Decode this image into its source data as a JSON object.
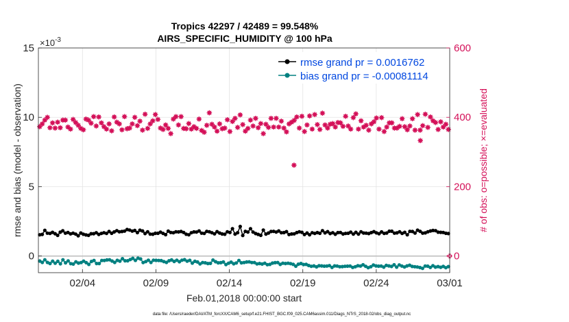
{
  "chart_data": {
    "type": "line",
    "title_line1": "Tropics 42297 / 42489 = 99.548%",
    "title_line2": "AIRS_SPECIFIC_HUMIDITY @ 100 hPa",
    "ylabel": "rmse and bias (model - observation)",
    "ylabel_right": "# of obs: o=possible; ×=evaluated",
    "xlabel": "Feb.01,2018 00:00:00 start",
    "footnote": "data file: /Users/raeder/DAI/ATM_forcXX/CAM6_setup/f.e21.FHIST_BGC.f09_025.CAM6assim.011/Diags_NTrS_2018-02/obs_diag_output.nc",
    "exponent_label": "×10",
    "exponent_power": "-3",
    "ylim": [
      -0.0012,
      0.015
    ],
    "ylim_right": [
      -48,
      600
    ],
    "xlim": [
      0,
      28
    ],
    "yticks": [
      0,
      0.005,
      0.01,
      0.015
    ],
    "ytick_labels": [
      "0",
      "5",
      "10",
      "15"
    ],
    "yticks_right": [
      0,
      200,
      400,
      600
    ],
    "ytick_labels_right": [
      "0",
      "200",
      "400",
      "600"
    ],
    "xticks": [
      3,
      8,
      13,
      18,
      23,
      28
    ],
    "xtick_labels": [
      "02/04",
      "02/09",
      "02/14",
      "02/19",
      "02/24",
      "03/01"
    ],
    "grid": true,
    "legend_position": "top-right",
    "zero_line_value": 0,
    "colors": {
      "rmse": "#000000",
      "bias": "#008080",
      "obs": "#d41159",
      "legend_text": "#0047e0",
      "zero_line": "#bbbbbb",
      "grid": "#e3e3e3"
    },
    "series": [
      {
        "name": "rmse grand pr = 0.0016762",
        "axis": "left",
        "color": "#000000",
        "values": [
          0.00153,
          0.00156,
          0.00185,
          0.00165,
          0.00163,
          0.00171,
          0.00161,
          0.00149,
          0.00172,
          0.00182,
          0.00165,
          0.0017,
          0.0016,
          0.00165,
          0.00158,
          0.00146,
          0.00166,
          0.00157,
          0.00152,
          0.00149,
          0.00161,
          0.00161,
          0.00168,
          0.00156,
          0.00163,
          0.00168,
          0.00163,
          0.00177,
          0.00164,
          0.00174,
          0.00183,
          0.00175,
          0.00177,
          0.0018,
          0.00191,
          0.00187,
          0.0018,
          0.00184,
          0.00169,
          0.00186,
          0.00181,
          0.00162,
          0.00175,
          0.00158,
          0.00157,
          0.00164,
          0.00164,
          0.00172,
          0.00163,
          0.00154,
          0.0018,
          0.0017,
          0.00168,
          0.00175,
          0.00174,
          0.00177,
          0.0017,
          0.00157,
          0.00153,
          0.00168,
          0.00174,
          0.00173,
          0.00181,
          0.00165,
          0.00163,
          0.00178,
          0.00175,
          0.00168,
          0.0016,
          0.00176,
          0.00166,
          0.00159,
          0.00157,
          0.00175,
          0.0017,
          0.00197,
          0.00158,
          0.00168,
          0.00213,
          0.00148,
          0.00178,
          0.00173,
          0.00197,
          0.00173,
          0.00162,
          0.00156,
          0.00149,
          0.00187,
          0.00158,
          0.00166,
          0.00177,
          0.00178,
          0.00173,
          0.00181,
          0.00168,
          0.00169,
          0.00176,
          0.00155,
          0.00159,
          0.0016,
          0.00169,
          0.00175,
          0.00171,
          0.00155,
          0.00166,
          0.00153,
          0.00168,
          0.00163,
          0.00169,
          0.00164,
          0.00183,
          0.00167,
          0.00176,
          0.00162,
          0.00168,
          0.00157,
          0.00169,
          0.0017,
          0.00159,
          0.00163,
          0.00164,
          0.00172,
          0.00158,
          0.00171,
          0.00158,
          0.00175,
          0.00166,
          0.00165,
          0.00162,
          0.00169,
          0.00176,
          0.00167,
          0.00161,
          0.00174,
          0.00163,
          0.00166,
          0.00179,
          0.00179,
          0.00165,
          0.00167,
          0.00175,
          0.00163,
          0.00171,
          0.00153,
          0.00178,
          0.00177,
          0.00166,
          0.00186,
          0.00178,
          0.00165,
          0.00167,
          0.00175,
          0.00181,
          0.00184,
          0.00183,
          0.00172,
          0.00171,
          0.0017,
          0.00164,
          0.00162
        ]
      },
      {
        "name": "bias grand pr = -0.00081114",
        "axis": "left",
        "color": "#008080",
        "values": [
          -0.00036,
          -0.00046,
          -0.00027,
          -0.00046,
          -0.00054,
          -0.00037,
          -0.00052,
          -0.00038,
          -0.00056,
          -0.00027,
          -0.00049,
          -0.00035,
          -0.00055,
          -0.00058,
          -0.00042,
          -0.00051,
          -0.00047,
          -0.00037,
          -0.00048,
          -0.0006,
          -0.00039,
          -0.00032,
          -0.00054,
          -0.00054,
          -0.00032,
          -0.00032,
          -0.00028,
          -0.00027,
          -0.00036,
          -0.00046,
          -0.00031,
          -0.00037,
          -0.00019,
          -0.00034,
          -0.00034,
          -0.00025,
          -0.00017,
          -0.00031,
          -0.00016,
          -0.00021,
          -0.00047,
          -0.0004,
          -0.0003,
          -0.00046,
          -0.0003,
          -0.00031,
          -0.00032,
          -0.00033,
          -0.0004,
          -0.00046,
          -0.00034,
          -0.00028,
          -0.00039,
          -0.0003,
          -0.00041,
          -0.0003,
          -0.00026,
          -0.00037,
          -0.00031,
          -0.00051,
          -0.00038,
          -0.00043,
          -0.00057,
          -0.00047,
          -0.00049,
          -0.00054,
          -0.00053,
          -0.00029,
          -0.00041,
          -0.00049,
          -0.00048,
          -0.00043,
          -0.00061,
          -0.00052,
          -0.00044,
          -0.00056,
          -0.0005,
          -0.00032,
          -0.00049,
          -0.00047,
          -0.00043,
          -0.00042,
          -0.00047,
          -0.00047,
          -0.00057,
          -0.00054,
          -0.00058,
          -0.00052,
          -0.00062,
          -0.0006,
          -0.00051,
          -0.00048,
          -0.00047,
          -0.0006,
          -0.00052,
          -0.00054,
          -0.00052,
          -0.00055,
          -0.0006,
          -0.00073,
          -0.00059,
          -0.00054,
          -0.00061,
          -0.0006,
          -0.00068,
          -0.00074,
          -0.00071,
          -0.00078,
          -0.0007,
          -0.00071,
          -0.00073,
          -0.00072,
          -0.00069,
          -0.00082,
          -0.00071,
          -0.00072,
          -0.00077,
          -0.00076,
          -0.00074,
          -0.00073,
          -0.00072,
          -0.00082,
          -0.00077,
          -0.0007,
          -0.00072,
          -0.00063,
          -0.00074,
          -0.00084,
          -0.00077,
          -0.00065,
          -0.00071,
          -0.00073,
          -0.00072,
          -0.0008,
          -0.00067,
          -0.00071,
          -0.00075,
          -0.00063,
          -0.0008,
          -0.00064,
          -0.00072,
          -0.00079,
          -0.00071,
          -0.00066,
          -0.00075,
          -0.00077,
          -0.00079,
          -0.00083,
          -0.00089,
          -0.00072,
          -0.00073,
          -0.00082,
          -0.0007,
          -0.0008,
          -0.00076,
          -0.00081,
          -0.00075,
          -0.00084,
          -0.00076
        ]
      },
      {
        "name": "# of obs",
        "axis": "right",
        "color": "#d41159",
        "marker": "star",
        "values": [
          373,
          381,
          392,
          400,
          370,
          384,
          369,
          386,
          370,
          392,
          392,
          372,
          366,
          394,
          385,
          377,
          368,
          364,
          395,
          392,
          383,
          402,
          375,
          401,
          384,
          373,
          366,
          381,
          361,
          401,
          386,
          381,
          364,
          402,
          367,
          369,
          381,
          400,
          376,
          389,
          363,
          409,
          368,
          381,
          390,
          408,
          394,
          369,
          365,
          378,
          368,
          353,
          395,
          402,
          378,
          402,
          368,
          367,
          382,
          366,
          373,
          368,
          395,
          362,
          357,
          377,
          413,
          380,
          372,
          360,
          381,
          367,
          369,
          393,
          359,
          388,
          397,
          371,
          407,
          379,
          360,
          368,
          392,
          375,
          397,
          370,
          382,
          353,
          380,
          371,
          397,
          372,
          397,
          372,
          389,
          369,
          358,
          381,
          386,
          391,
          401,
          369,
          403,
          359,
          378,
          404,
          366,
          408,
          379,
          365,
          412,
          378,
          369,
          380,
          382,
          372,
          385,
          384,
          374,
          403,
          375,
          366,
          399,
          410,
          366,
          390,
          372,
          377,
          363,
          381,
          387,
          398,
          366,
          399,
          359,
          372,
          384,
          384,
          369,
          369,
          374,
          396,
          373,
          364,
          375,
          396,
          363,
          408,
          363,
          376,
          409,
          371,
          401,
          390,
          385,
          365,
          387,
          372,
          380,
          365
        ]
      },
      {
        "name": "# of obs outliers",
        "axis": "right",
        "color": "#d41159",
        "marker": "star",
        "x": [
          17.4,
          26.0
        ],
        "values": [
          262,
          333
        ]
      },
      {
        "name": "# of obs end marker",
        "axis": "right",
        "color": "#d41159",
        "marker": "circle",
        "x": [
          28.0
        ],
        "values": [
          0
        ]
      }
    ]
  }
}
